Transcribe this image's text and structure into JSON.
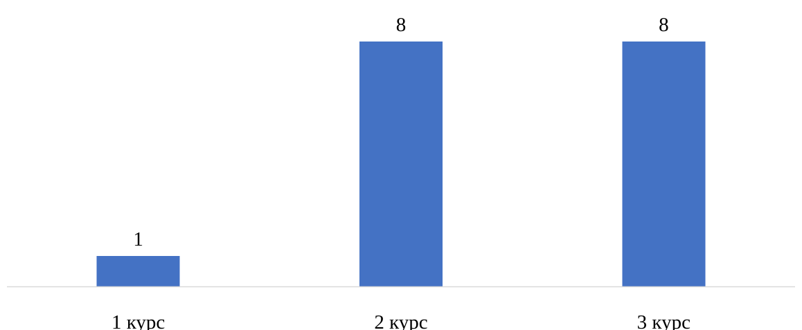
{
  "chart_data": {
    "type": "bar",
    "categories": [
      "1 курс",
      "2 курс",
      "3 курс"
    ],
    "values": [
      1,
      8,
      8
    ],
    "data_labels": [
      "1",
      "8",
      "8"
    ],
    "title": "",
    "xlabel": "",
    "ylabel": "",
    "ylim": [
      0,
      8
    ],
    "grid": false,
    "legend": "none",
    "bar_color": "#4472C4",
    "axis_color": "#D9D9D9"
  }
}
